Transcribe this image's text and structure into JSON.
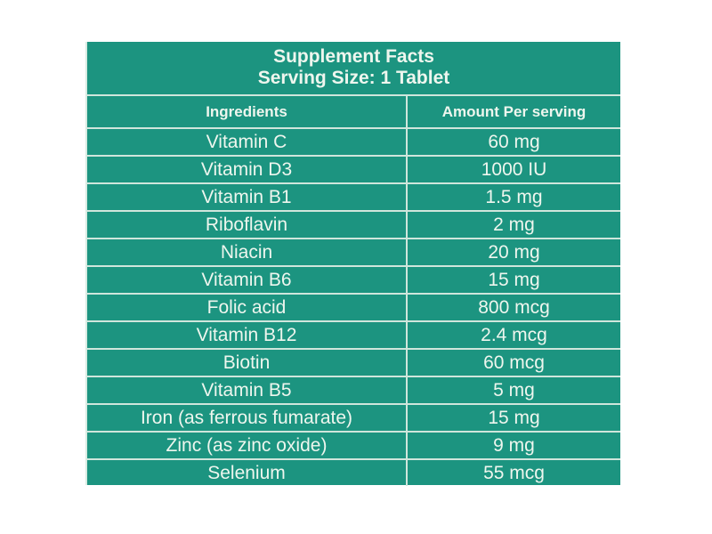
{
  "title": "Supplement Facts",
  "serving_size": "Serving Size: 1 Tablet",
  "headers": {
    "ingredient": "Ingredients",
    "amount": "Amount Per serving"
  },
  "rows": [
    {
      "ingredient": "Vitamin C",
      "amount": "60 mg"
    },
    {
      "ingredient": "Vitamin D3",
      "amount": "1000 IU"
    },
    {
      "ingredient": "Vitamin B1",
      "amount": "1.5 mg"
    },
    {
      "ingredient": "Riboflavin",
      "amount": "2 mg"
    },
    {
      "ingredient": "Niacin",
      "amount": "20 mg"
    },
    {
      "ingredient": "Vitamin B6",
      "amount": "15 mg"
    },
    {
      "ingredient": "Folic acid",
      "amount": "800 mcg"
    },
    {
      "ingredient": "Vitamin B12",
      "amount": "2.4 mcg"
    },
    {
      "ingredient": "Biotin",
      "amount": "60 mcg"
    },
    {
      "ingredient": "Vitamin B5",
      "amount": "5 mg"
    },
    {
      "ingredient": "Iron (as ferrous fumarate)",
      "amount": "15 mg"
    },
    {
      "ingredient": "Zinc (as zinc oxide)",
      "amount": "9 mg"
    },
    {
      "ingredient": "Selenium",
      "amount": "55 mcg"
    }
  ],
  "colors": {
    "background": "#1c9480",
    "text": "#eef6ee"
  }
}
